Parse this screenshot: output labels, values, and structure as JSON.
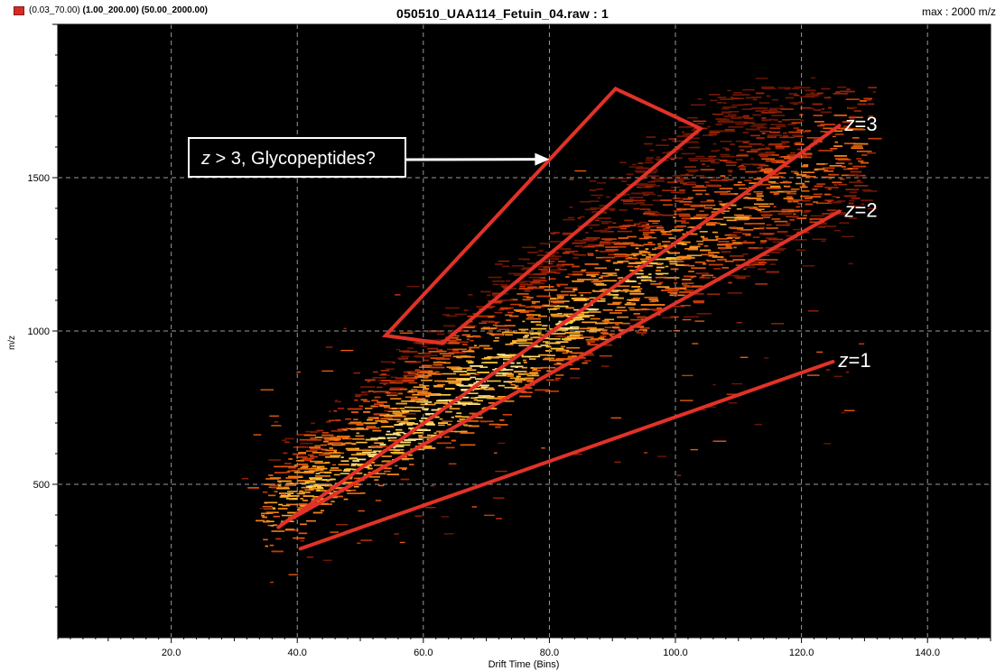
{
  "header": {
    "legend_parts": [
      "(0.03_70.00)",
      "(1.00_200.00)",
      "(50.00_2000.00)"
    ],
    "title": "050510_UAA114_Fetuin_04.raw : 1",
    "max_label": "max : 2000 m/z"
  },
  "colors": {
    "background": "#000000",
    "grid": "#9a9a9a",
    "lines": "#e23228",
    "swatch": "#d62a26"
  },
  "chart_data": {
    "type": "heatmap",
    "xlabel": "Drift Time (Bins)",
    "ylabel": "m/z",
    "xlim": [
      2,
      150
    ],
    "ylim": [
      0,
      2000
    ],
    "x_ticks": [
      20,
      40,
      60,
      80,
      100,
      120,
      140
    ],
    "x_tick_labels": [
      "20.0",
      "40.0",
      "60.0",
      "80.0",
      "100.0",
      "120.0",
      "140.0"
    ],
    "y_ticks": [
      500,
      1000,
      1500
    ],
    "y_tick_labels": [
      "500",
      "1000",
      "1500"
    ],
    "grid": true,
    "charge_state_lines": [
      {
        "label": "z=1",
        "label_z": "z",
        "label_rest": "=1",
        "points": [
          [
            40.5,
            290
          ],
          [
            125,
            900
          ]
        ]
      },
      {
        "label": "z=2",
        "label_z": "z",
        "label_rest": "=2",
        "points": [
          [
            37.5,
            370
          ],
          [
            126,
            1390
          ]
        ]
      },
      {
        "label": "z=3",
        "label_z": "z",
        "label_rest": "=3",
        "points": [
          [
            37,
            360
          ],
          [
            126,
            1670
          ]
        ]
      }
    ],
    "region": {
      "polygon": [
        [
          54,
          985
        ],
        [
          63,
          960
        ],
        [
          104,
          1660
        ],
        [
          90.5,
          1790
        ]
      ],
      "label_z": "z",
      "label_rest": " > 3, Glycopeptides?",
      "arrow_to": [
        80,
        1560
      ]
    }
  }
}
